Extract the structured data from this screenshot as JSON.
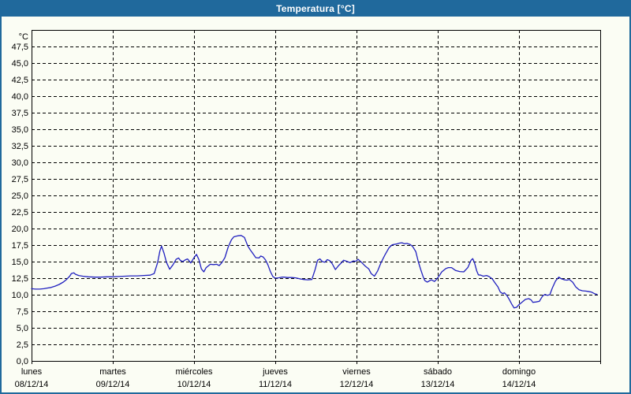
{
  "window": {
    "title": "Temperatura [°C]"
  },
  "colors": {
    "chrome_blue": "#20699c",
    "background": "#fbfdf4",
    "grid": "#000000",
    "axis": "#000000",
    "label_text": "#000000",
    "line": "#2020bf"
  },
  "chart_data": {
    "type": "line",
    "title": "Temperatura [°C]",
    "y_unit_label": "°C",
    "ylim": [
      0,
      50
    ],
    "ytick_step": 2.5,
    "grid": "dashed",
    "legend": "none",
    "ytick_labels_bottom_to_top": [
      "0,0",
      "2,5",
      "5,0",
      "7,5",
      "10,0",
      "12,5",
      "15,0",
      "17,5",
      "20,0",
      "22,5",
      "25,0",
      "27,5",
      "30,0",
      "32,5",
      "35,0",
      "37,5",
      "40,0",
      "42,5",
      "45,0",
      "47,5"
    ],
    "x_categories": [
      {
        "day": "lunes",
        "date": "08/12/14"
      },
      {
        "day": "martes",
        "date": "09/12/14"
      },
      {
        "day": "miércoles",
        "date": "10/12/14"
      },
      {
        "day": "jueves",
        "date": "11/12/14"
      },
      {
        "day": "viernes",
        "date": "12/12/14"
      },
      {
        "day": "sábado",
        "date": "13/12/14"
      },
      {
        "day": "domingo",
        "date": "14/12/14"
      }
    ],
    "x_axis_note": "x in days since lunes 08/12/14 00:00, range 0-7",
    "series": [
      {
        "name": "Temperatura",
        "color": "#2020bf",
        "points": [
          [
            0,
            10.9
          ],
          [
            0.05,
            10.85
          ],
          [
            0.1,
            10.85
          ],
          [
            0.15,
            10.9
          ],
          [
            0.19,
            11.0
          ],
          [
            0.24,
            11.1
          ],
          [
            0.29,
            11.3
          ],
          [
            0.34,
            11.55
          ],
          [
            0.39,
            11.9
          ],
          [
            0.43,
            12.3
          ],
          [
            0.47,
            12.8
          ],
          [
            0.49,
            13.2
          ],
          [
            0.52,
            13.3
          ],
          [
            0.54,
            13.1
          ],
          [
            0.58,
            12.9
          ],
          [
            0.63,
            12.8
          ],
          [
            0.7,
            12.7
          ],
          [
            0.78,
            12.65
          ],
          [
            0.85,
            12.65
          ],
          [
            0.93,
            12.7
          ],
          [
            1.0,
            12.7
          ],
          [
            1.07,
            12.75
          ],
          [
            1.15,
            12.8
          ],
          [
            1.22,
            12.85
          ],
          [
            1.3,
            12.85
          ],
          [
            1.38,
            12.9
          ],
          [
            1.46,
            12.95
          ],
          [
            1.51,
            13.2
          ],
          [
            1.55,
            14.8
          ],
          [
            1.58,
            16.6
          ],
          [
            1.6,
            17.35
          ],
          [
            1.63,
            16.3
          ],
          [
            1.66,
            14.9
          ],
          [
            1.7,
            13.85
          ],
          [
            1.74,
            14.5
          ],
          [
            1.78,
            15.35
          ],
          [
            1.81,
            15.55
          ],
          [
            1.83,
            15.2
          ],
          [
            1.86,
            15.0
          ],
          [
            1.89,
            15.25
          ],
          [
            1.92,
            15.4
          ],
          [
            1.96,
            14.8
          ],
          [
            2.0,
            15.6
          ],
          [
            2.03,
            16.1
          ],
          [
            2.06,
            15.3
          ],
          [
            2.09,
            13.9
          ],
          [
            2.12,
            13.45
          ],
          [
            2.15,
            14.1
          ],
          [
            2.2,
            14.6
          ],
          [
            2.24,
            14.55
          ],
          [
            2.28,
            14.6
          ],
          [
            2.31,
            14.4
          ],
          [
            2.34,
            14.8
          ],
          [
            2.38,
            15.6
          ],
          [
            2.42,
            17.2
          ],
          [
            2.46,
            18.3
          ],
          [
            2.49,
            18.75
          ],
          [
            2.54,
            18.9
          ],
          [
            2.58,
            18.95
          ],
          [
            2.62,
            18.65
          ],
          [
            2.66,
            17.4
          ],
          [
            2.69,
            16.8
          ],
          [
            2.72,
            16.3
          ],
          [
            2.76,
            15.6
          ],
          [
            2.8,
            15.55
          ],
          [
            2.82,
            15.85
          ],
          [
            2.85,
            15.7
          ],
          [
            2.88,
            15.25
          ],
          [
            2.91,
            14.5
          ],
          [
            2.94,
            13.5
          ],
          [
            2.97,
            12.75
          ],
          [
            3.0,
            12.5
          ],
          [
            3.04,
            12.55
          ],
          [
            3.08,
            12.65
          ],
          [
            3.11,
            12.65
          ],
          [
            3.15,
            12.6
          ],
          [
            3.2,
            12.6
          ],
          [
            3.25,
            12.55
          ],
          [
            3.3,
            12.4
          ],
          [
            3.35,
            12.3
          ],
          [
            3.4,
            12.25
          ],
          [
            3.45,
            12.3
          ],
          [
            3.49,
            13.8
          ],
          [
            3.52,
            15.2
          ],
          [
            3.55,
            15.4
          ],
          [
            3.58,
            15.0
          ],
          [
            3.61,
            14.9
          ],
          [
            3.64,
            15.3
          ],
          [
            3.67,
            15.15
          ],
          [
            3.7,
            14.7
          ],
          [
            3.74,
            13.8
          ],
          [
            3.78,
            14.4
          ],
          [
            3.82,
            14.9
          ],
          [
            3.84,
            15.2
          ],
          [
            3.88,
            15.05
          ],
          [
            3.92,
            14.85
          ],
          [
            3.96,
            15.1
          ],
          [
            3.99,
            15.05
          ],
          [
            4.02,
            15.35
          ],
          [
            4.06,
            14.9
          ],
          [
            4.11,
            14.3
          ],
          [
            4.15,
            13.9
          ],
          [
            4.18,
            13.2
          ],
          [
            4.22,
            12.8
          ],
          [
            4.26,
            13.6
          ],
          [
            4.3,
            14.8
          ],
          [
            4.35,
            16.0
          ],
          [
            4.4,
            17.1
          ],
          [
            4.44,
            17.55
          ],
          [
            4.49,
            17.65
          ],
          [
            4.53,
            17.8
          ],
          [
            4.56,
            17.85
          ],
          [
            4.59,
            17.7
          ],
          [
            4.62,
            17.75
          ],
          [
            4.66,
            17.6
          ],
          [
            4.69,
            17.3
          ],
          [
            4.73,
            16.5
          ],
          [
            4.76,
            15.0
          ],
          [
            4.79,
            13.8
          ],
          [
            4.82,
            12.7
          ],
          [
            4.84,
            12.15
          ],
          [
            4.87,
            11.9
          ],
          [
            4.92,
            12.25
          ],
          [
            4.96,
            12.0
          ],
          [
            4.98,
            12.25
          ],
          [
            5.02,
            12.9
          ],
          [
            5.05,
            13.45
          ],
          [
            5.1,
            13.95
          ],
          [
            5.13,
            14.1
          ],
          [
            5.17,
            14.1
          ],
          [
            5.22,
            13.65
          ],
          [
            5.27,
            13.5
          ],
          [
            5.32,
            13.45
          ],
          [
            5.37,
            14.1
          ],
          [
            5.41,
            15.2
          ],
          [
            5.43,
            15.45
          ],
          [
            5.45,
            14.9
          ],
          [
            5.48,
            13.6
          ],
          [
            5.5,
            13.0
          ],
          [
            5.53,
            12.95
          ],
          [
            5.56,
            12.8
          ],
          [
            5.6,
            12.9
          ],
          [
            5.63,
            12.75
          ],
          [
            5.67,
            12.4
          ],
          [
            5.71,
            11.7
          ],
          [
            5.74,
            11.2
          ],
          [
            5.77,
            10.4
          ],
          [
            5.8,
            10.15
          ],
          [
            5.82,
            10.3
          ],
          [
            5.85,
            9.9
          ],
          [
            5.88,
            9.3
          ],
          [
            5.91,
            8.6
          ],
          [
            5.94,
            8.0
          ],
          [
            5.97,
            8.1
          ],
          [
            6.0,
            8.5
          ],
          [
            6.04,
            8.9
          ],
          [
            6.08,
            9.3
          ],
          [
            6.12,
            9.4
          ],
          [
            6.15,
            9.2
          ],
          [
            6.17,
            8.85
          ],
          [
            6.21,
            8.9
          ],
          [
            6.25,
            9.0
          ],
          [
            6.29,
            9.8
          ],
          [
            6.32,
            10.05
          ],
          [
            6.35,
            9.9
          ],
          [
            6.38,
            10.0
          ],
          [
            6.41,
            11.0
          ],
          [
            6.45,
            12.1
          ],
          [
            6.49,
            12.65
          ],
          [
            6.52,
            12.4
          ],
          [
            6.56,
            12.25
          ],
          [
            6.59,
            12.2
          ],
          [
            6.62,
            12.3
          ],
          [
            6.66,
            11.9
          ],
          [
            6.7,
            11.15
          ],
          [
            6.74,
            10.75
          ],
          [
            6.78,
            10.6
          ],
          [
            6.82,
            10.55
          ],
          [
            6.85,
            10.5
          ],
          [
            6.89,
            10.4
          ],
          [
            6.93,
            10.15
          ],
          [
            6.96,
            10.05
          ]
        ]
      }
    ]
  }
}
